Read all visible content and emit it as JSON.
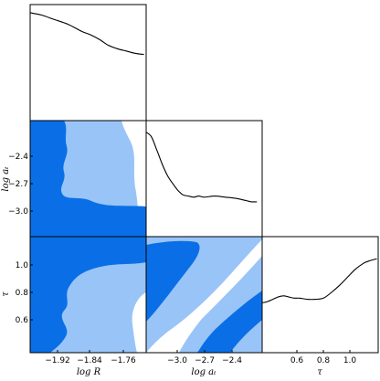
{
  "chart_data": [
    {
      "type": "line",
      "panel": "marginal-logR",
      "x": [
        -1.975,
        -1.95,
        -1.92,
        -1.89,
        -1.86,
        -1.84,
        -1.82,
        -1.8,
        -1.78,
        -1.76,
        -1.74,
        -1.72
      ],
      "y": [
        0.93,
        0.91,
        0.87,
        0.83,
        0.77,
        0.74,
        0.7,
        0.65,
        0.62,
        0.6,
        0.58,
        0.57
      ],
      "xlim": [
        -1.975,
        -1.715
      ],
      "ylim": [
        0,
        1
      ]
    },
    {
      "type": "line",
      "panel": "marginal-log-at",
      "x": [
        -3.25,
        -3.2,
        -3.15,
        -3.1,
        -3.05,
        -3.0,
        -2.95,
        -2.9,
        -2.85,
        -2.8,
        -2.75,
        -2.7,
        -2.6,
        -2.5,
        -2.4,
        -2.3,
        -2.25,
        -2.2
      ],
      "y": [
        0.9,
        0.86,
        0.75,
        0.63,
        0.53,
        0.46,
        0.4,
        0.36,
        0.35,
        0.34,
        0.35,
        0.34,
        0.35,
        0.34,
        0.33,
        0.31,
        0.3,
        0.3
      ],
      "xlim": [
        -3.25,
        -2.15
      ],
      "ylim": [
        0,
        1
      ]
    },
    {
      "type": "line",
      "panel": "marginal-tau",
      "x": [
        0.32,
        0.36,
        0.4,
        0.44,
        0.48,
        0.52,
        0.56,
        0.6,
        0.66,
        0.72,
        0.78,
        0.84,
        0.9,
        0.96,
        1.02,
        1.08,
        1.12,
        1.18
      ],
      "y": [
        0.43,
        0.44,
        0.46,
        0.48,
        0.49,
        0.48,
        0.47,
        0.47,
        0.46,
        0.46,
        0.47,
        0.52,
        0.58,
        0.65,
        0.72,
        0.77,
        0.79,
        0.81
      ],
      "xlim": [
        0.32,
        1.19
      ],
      "ylim": [
        0,
        1
      ]
    },
    {
      "type": "contour",
      "panel": "joint-logR-log-at",
      "x": [
        -1.975,
        -1.92,
        -1.84,
        -1.76,
        -1.715
      ],
      "y": [
        -3.25,
        -3.0,
        -2.7,
        -2.4,
        -2.15
      ],
      "levels": [
        "1-sigma",
        "2-sigma"
      ]
    },
    {
      "type": "contour",
      "panel": "joint-logR-tau",
      "x": [
        -1.975,
        -1.92,
        -1.84,
        -1.76,
        -1.715
      ],
      "y": [
        0.32,
        0.6,
        0.8,
        1.0,
        1.19
      ],
      "levels": [
        "1-sigma",
        "2-sigma"
      ]
    },
    {
      "type": "contour",
      "panel": "joint-log-at-tau",
      "x": [
        -3.25,
        -3.0,
        -2.7,
        -2.4,
        -2.15
      ],
      "y": [
        0.32,
        0.6,
        0.8,
        1.0,
        1.19
      ],
      "levels": [
        "1-sigma",
        "2-sigma"
      ]
    }
  ],
  "colors": {
    "sigma1": "#0a6fe6",
    "sigma2": "#99c4f7",
    "line": "#000000"
  },
  "labels": {
    "ylabel_row2": "log aₜ",
    "ylabel_row3": "τ",
    "xlabel_col1": "log R",
    "xlabel_col2": "log aₜ",
    "xlabel_col3": "τ"
  },
  "ticks": {
    "logR": [
      "−1.92",
      "−1.84",
      "−1.76"
    ],
    "log_at_y": [
      "−2.4",
      "−2.7",
      "−3.0"
    ],
    "tau_y": [
      "1.0",
      "0.8",
      "0.6"
    ],
    "log_at_x": [
      "−3.0",
      "−2.7",
      "−2.4"
    ],
    "tau_x": [
      "0.6",
      "0.8",
      "1.0"
    ]
  }
}
